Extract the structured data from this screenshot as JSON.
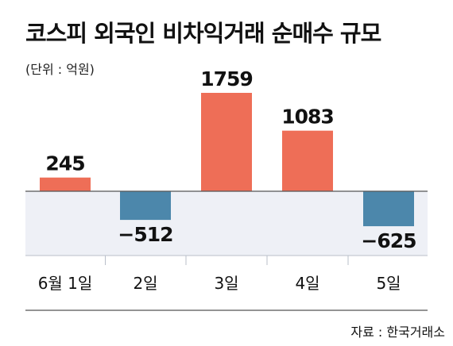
{
  "chart_data": {
    "type": "bar",
    "title": "코스피 외국인 비차익거래 순매수 규모",
    "unit_label": "(단위 : 억원)",
    "source": "자료 : 한국거래소",
    "categories": [
      "6월 1일",
      "2일",
      "3일",
      "4일",
      "5일"
    ],
    "values": [
      245,
      -512,
      1759,
      1083,
      -625
    ],
    "value_labels": [
      "245",
      "−512",
      "1759",
      "1083",
      "−625"
    ],
    "ylim": [
      -800,
      1800
    ],
    "grid": false,
    "colors": {
      "positive": "#ee6e57",
      "negative": "#4c87ab",
      "negative_band": "#eef0f6",
      "axis": "#555555",
      "divider": "#b9bfca"
    }
  }
}
